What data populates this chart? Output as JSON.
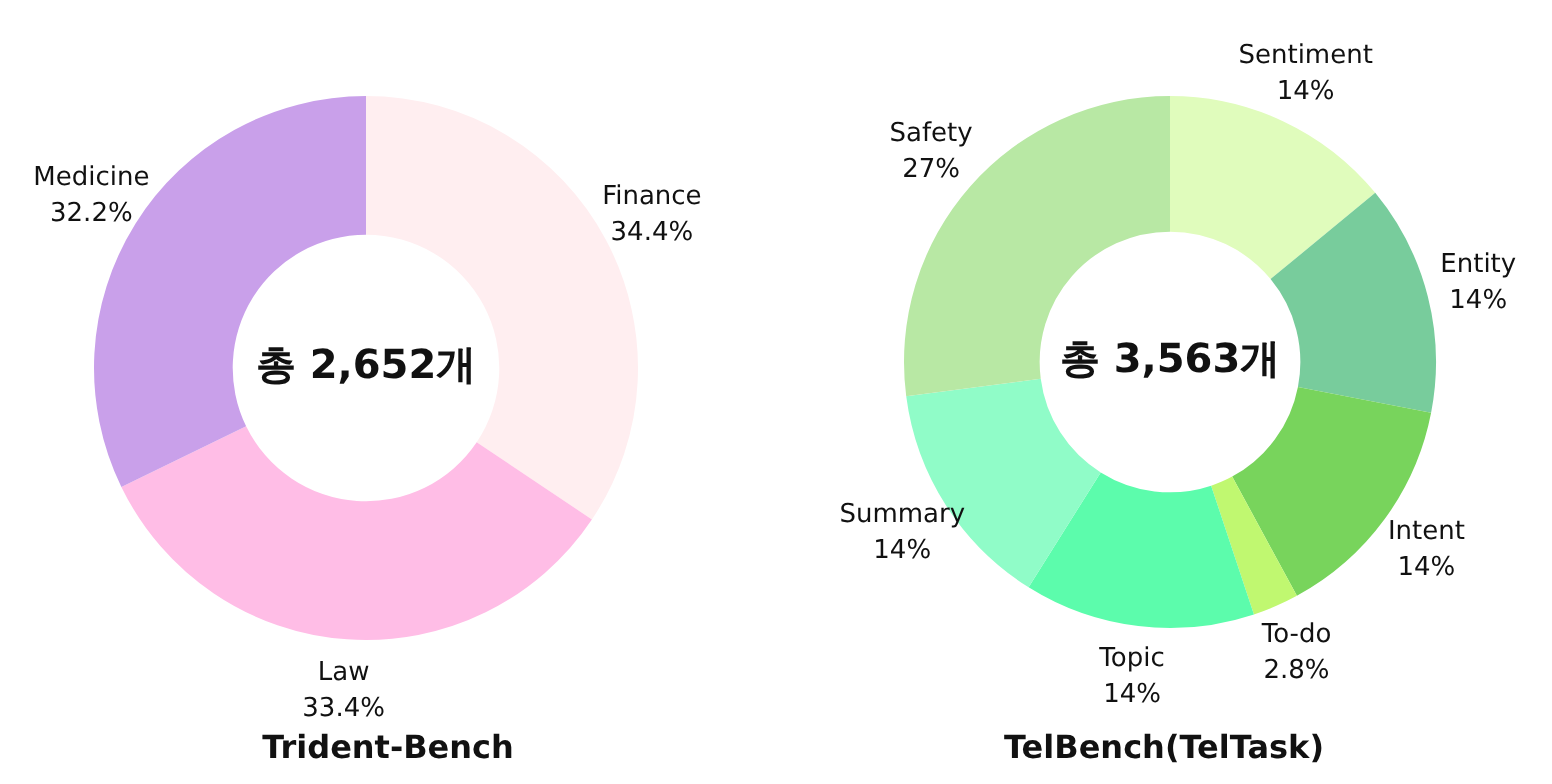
{
  "chart_data": [
    {
      "type": "donut",
      "title": "Trident-Bench",
      "categories": [
        "Finance",
        "Law",
        "Medicine"
      ],
      "values": [
        34.4,
        33.4,
        32.2
      ],
      "colors": [
        "#ffeef0",
        "#ffbde6",
        "#c9a0ea"
      ],
      "value_labels": [
        "34.4%",
        "33.4%",
        "32.2%"
      ],
      "annotations": [
        "총 2,652개"
      ]
    },
    {
      "type": "donut",
      "title": "TelBench(TelTask)",
      "categories": [
        "Sentiment",
        "Entity",
        "Intent",
        "To-do",
        "Topic",
        "Summary",
        "Safety"
      ],
      "values": [
        14,
        14,
        14,
        2.8,
        14,
        14,
        27
      ],
      "colors": [
        "#e0fcbc",
        "#78cc9c",
        "#78d45c",
        "#c0f870",
        "#5cfcac",
        "#90fcc8",
        "#b8e8a4"
      ],
      "value_labels": [
        "14%",
        "14%",
        "14%",
        "2.8%",
        "14%",
        "14%",
        "27%"
      ],
      "annotations": [
        "총 3,563개"
      ]
    }
  ]
}
